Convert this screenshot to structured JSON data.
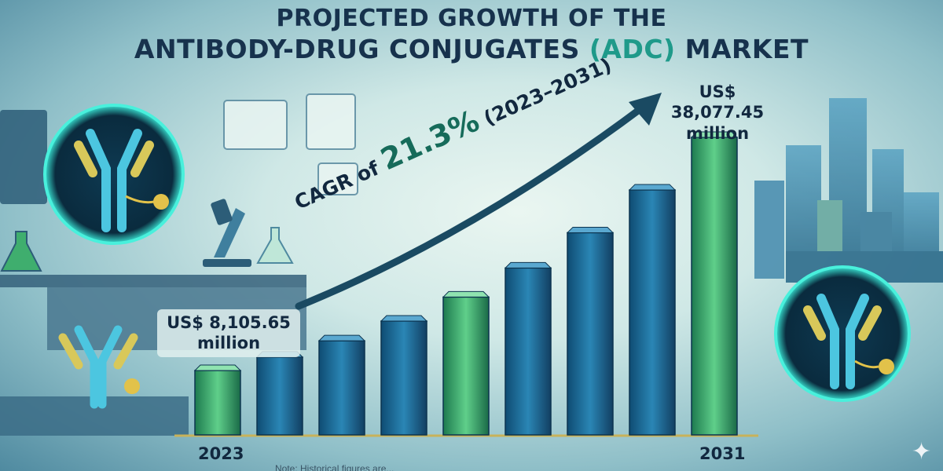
{
  "title": {
    "line1": "PROJECTED GROWTH OF THE",
    "line2_pre": "ANTIBODY-DRUG CONJUGATES ",
    "line2_highlight": "(ADC)",
    "line2_post": " MARKET"
  },
  "cagr": {
    "prefix": "CAGR of ",
    "rate": "21.3%",
    "period": " (2023–2031)"
  },
  "start_label": {
    "value": "US$ 8,105.65",
    "unit": "million"
  },
  "end_label": {
    "value": "US$ 38,077.45",
    "unit": "million"
  },
  "footnote": "Note: Historical figures are...",
  "colors": {
    "title": "#17324d",
    "bar_blue": "#1d6f9a",
    "bar_green": "#2f9e68",
    "arrow": "#1a4a62",
    "highlight": "#1f9a8a"
  },
  "icons": [
    "antibody-icon",
    "microscope-icon",
    "flask-icon",
    "city-skyline",
    "sparkle-icon"
  ],
  "chart_data": {
    "type": "bar",
    "categories": [
      "2023",
      "",
      "",
      "",
      "",
      "",
      "",
      "",
      "2031"
    ],
    "values": [
      8105.65,
      9832,
      11927,
      14467,
      17549,
      21287,
      25822,
      31322,
      38077.45
    ],
    "labeled_values": {
      "2023": "US$ 8,105.65 million",
      "2031": "US$ 38,077.45 million"
    },
    "title": "PROJECTED GROWTH OF THE ANTIBODY-DRUG CONJUGATES (ADC) MARKET",
    "xlabel": "",
    "ylabel": "",
    "ylim": [
      0,
      40000
    ],
    "cagr": "21.3%",
    "period": "2023–2031",
    "grid": false,
    "legend": "none"
  }
}
